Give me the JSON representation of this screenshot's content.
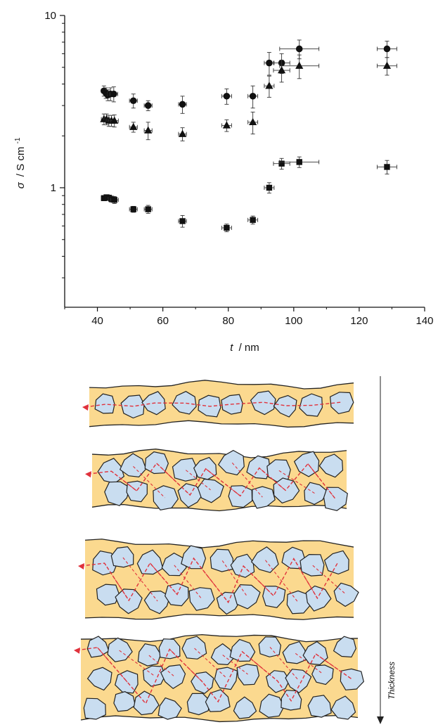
{
  "chart_data": {
    "type": "scatter",
    "xlabel_symbol": "t",
    "xlabel_unit": "/ nm",
    "ylabel_symbol": "σ",
    "ylabel_unit": "/ S cm",
    "ylabel_sup": "-1",
    "xlim": [
      30,
      140
    ],
    "ylim": [
      0.2,
      10
    ],
    "yscale": "log",
    "xticks": [
      40,
      60,
      80,
      100,
      120,
      140
    ],
    "yticks": [
      1,
      10
    ],
    "grid": false,
    "series": [
      {
        "marker": "circle",
        "points": [
          {
            "x": 42.0,
            "y": 3.65,
            "xerr": 0.8,
            "yerr": 0.25
          },
          {
            "x": 42.6,
            "y": 3.55,
            "xerr": 0.8,
            "yerr": 0.25
          },
          {
            "x": 43.2,
            "y": 3.45,
            "xerr": 0.8,
            "yerr": 0.25
          },
          {
            "x": 44.0,
            "y": 3.5,
            "xerr": 1.0,
            "yerr": 0.3
          },
          {
            "x": 45.0,
            "y": 3.5,
            "xerr": 1.2,
            "yerr": 0.35
          },
          {
            "x": 51.0,
            "y": 3.2,
            "xerr": 1.2,
            "yerr": 0.3
          },
          {
            "x": 55.5,
            "y": 3.0,
            "xerr": 1.2,
            "yerr": 0.2
          },
          {
            "x": 66.0,
            "y": 3.05,
            "xerr": 1.2,
            "yerr": 0.35
          },
          {
            "x": 79.5,
            "y": 3.4,
            "xerr": 1.5,
            "yerr": 0.35
          },
          {
            "x": 87.5,
            "y": 3.4,
            "xerr": 1.5,
            "yerr": 0.5
          },
          {
            "x": 92.5,
            "y": 5.3,
            "xerr": 1.5,
            "yerr": 0.8
          },
          {
            "x": 96.3,
            "y": 5.3,
            "xerr": 2.5,
            "yerr": 0.7
          },
          {
            "x": 101.7,
            "y": 6.4,
            "xerr": 6.0,
            "yerr": 0.8
          },
          {
            "x": 128.5,
            "y": 6.4,
            "xerr": 3.0,
            "yerr": 0.7
          }
        ]
      },
      {
        "marker": "triangle",
        "points": [
          {
            "x": 42.0,
            "y": 2.5,
            "xerr": 0.8,
            "yerr": 0.18
          },
          {
            "x": 42.8,
            "y": 2.5,
            "xerr": 0.8,
            "yerr": 0.18
          },
          {
            "x": 43.5,
            "y": 2.45,
            "xerr": 0.8,
            "yerr": 0.18
          },
          {
            "x": 44.3,
            "y": 2.45,
            "xerr": 1.0,
            "yerr": 0.18
          },
          {
            "x": 45.2,
            "y": 2.45,
            "xerr": 1.2,
            "yerr": 0.2
          },
          {
            "x": 51.0,
            "y": 2.25,
            "xerr": 1.2,
            "yerr": 0.15
          },
          {
            "x": 55.5,
            "y": 2.15,
            "xerr": 1.2,
            "yerr": 0.25
          },
          {
            "x": 66.0,
            "y": 2.05,
            "xerr": 1.2,
            "yerr": 0.18
          },
          {
            "x": 79.5,
            "y": 2.3,
            "xerr": 1.5,
            "yerr": 0.18
          },
          {
            "x": 87.5,
            "y": 2.4,
            "xerr": 1.5,
            "yerr": 0.35
          },
          {
            "x": 92.5,
            "y": 3.9,
            "xerr": 1.5,
            "yerr": 0.55
          },
          {
            "x": 96.3,
            "y": 4.8,
            "xerr": 2.5,
            "yerr": 0.7
          },
          {
            "x": 101.7,
            "y": 5.1,
            "xerr": 6.0,
            "yerr": 0.8
          },
          {
            "x": 128.5,
            "y": 5.1,
            "xerr": 3.0,
            "yerr": 0.6
          }
        ]
      },
      {
        "marker": "square",
        "points": [
          {
            "x": 42.0,
            "y": 0.87,
            "xerr": 0.8,
            "yerr": 0.03
          },
          {
            "x": 42.8,
            "y": 0.88,
            "xerr": 0.8,
            "yerr": 0.03
          },
          {
            "x": 43.5,
            "y": 0.875,
            "xerr": 0.8,
            "yerr": 0.03
          },
          {
            "x": 44.3,
            "y": 0.86,
            "xerr": 1.0,
            "yerr": 0.035
          },
          {
            "x": 45.2,
            "y": 0.85,
            "xerr": 1.2,
            "yerr": 0.04
          },
          {
            "x": 51.0,
            "y": 0.75,
            "xerr": 1.2,
            "yerr": 0.03
          },
          {
            "x": 55.5,
            "y": 0.75,
            "xerr": 1.2,
            "yerr": 0.04
          },
          {
            "x": 66.0,
            "y": 0.64,
            "xerr": 1.2,
            "yerr": 0.05
          },
          {
            "x": 79.5,
            "y": 0.585,
            "xerr": 1.5,
            "yerr": 0.03
          },
          {
            "x": 87.5,
            "y": 0.65,
            "xerr": 1.5,
            "yerr": 0.035
          },
          {
            "x": 92.5,
            "y": 1.0,
            "xerr": 1.5,
            "yerr": 0.07
          },
          {
            "x": 96.3,
            "y": 1.38,
            "xerr": 2.5,
            "yerr": 0.1
          },
          {
            "x": 101.7,
            "y": 1.41,
            "xerr": 6.0,
            "yerr": 0.1
          },
          {
            "x": 128.5,
            "y": 1.32,
            "xerr": 3.0,
            "yerr": 0.12
          }
        ]
      }
    ]
  },
  "schematic": {
    "side_label": "Thickness",
    "film_fill": "#fbd98f",
    "flake_fill": "#c9ddf0",
    "path_color": "#e0323c",
    "outline_color": "#222222"
  }
}
